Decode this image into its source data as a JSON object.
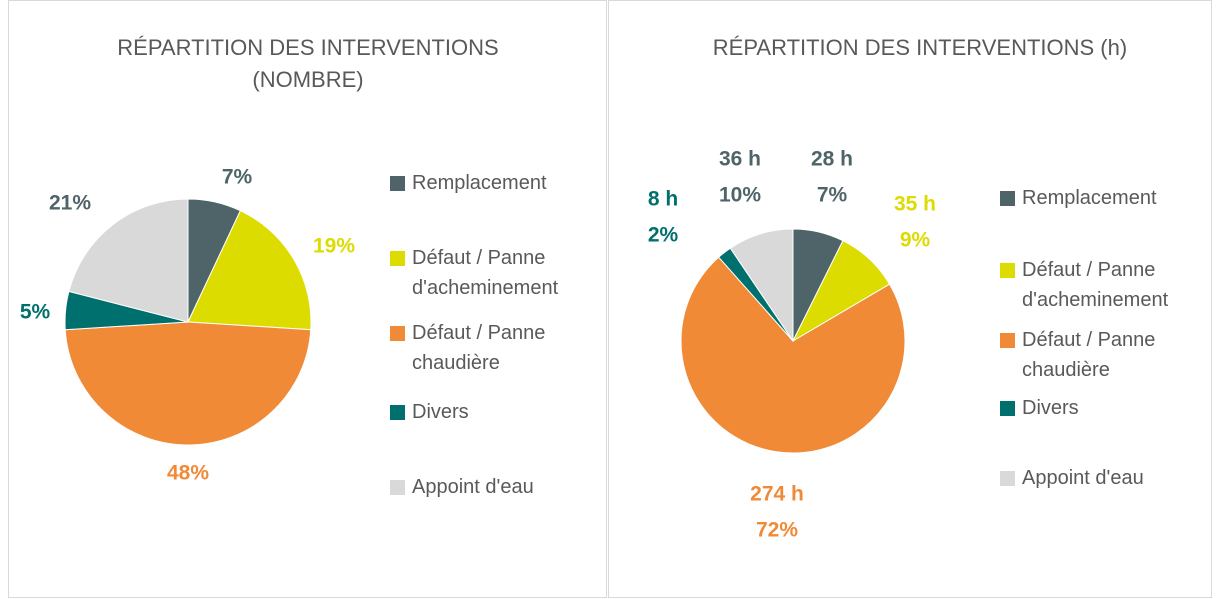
{
  "chart_data": [
    {
      "type": "pie",
      "title": "RÉPARTITION DES INTERVENTIONS (NOMBRE)",
      "categories": [
        "Remplacement",
        "Défaut / Panne d'acheminement",
        "Défaut / Panne chaudière",
        "Divers",
        "Appoint d'eau"
      ],
      "values": [
        7,
        19,
        48,
        5,
        21
      ],
      "value_labels": [
        "7%",
        "19%",
        "48%",
        "5%",
        "21%"
      ],
      "colors": [
        "#4e6468",
        "#dcdc00",
        "#f08a36",
        "#00706e",
        "#d9d9d9"
      ],
      "label_colors": [
        "#4e6468",
        "#dcdc00",
        "#f08a36",
        "#00706e",
        "#4e6468"
      ]
    },
    {
      "type": "pie",
      "title": "RÉPARTITION DES INTERVENTIONS (h)",
      "categories": [
        "Remplacement",
        "Défaut / Panne d'acheminement",
        "Défaut / Panne chaudière",
        "Divers",
        "Appoint d'eau"
      ],
      "values": [
        28,
        35,
        274,
        8,
        36
      ],
      "value_labels": [
        "28 h",
        "35 h",
        "274 h",
        "8 h",
        "36 h"
      ],
      "percent_labels": [
        "7%",
        "9%",
        "72%",
        "2%",
        "10%"
      ],
      "colors": [
        "#4e6468",
        "#dcdc00",
        "#f08a36",
        "#00706e",
        "#d9d9d9"
      ],
      "label_colors": [
        "#4e6468",
        "#dcdc00",
        "#f08a36",
        "#00706e",
        "#4e6468"
      ]
    }
  ]
}
